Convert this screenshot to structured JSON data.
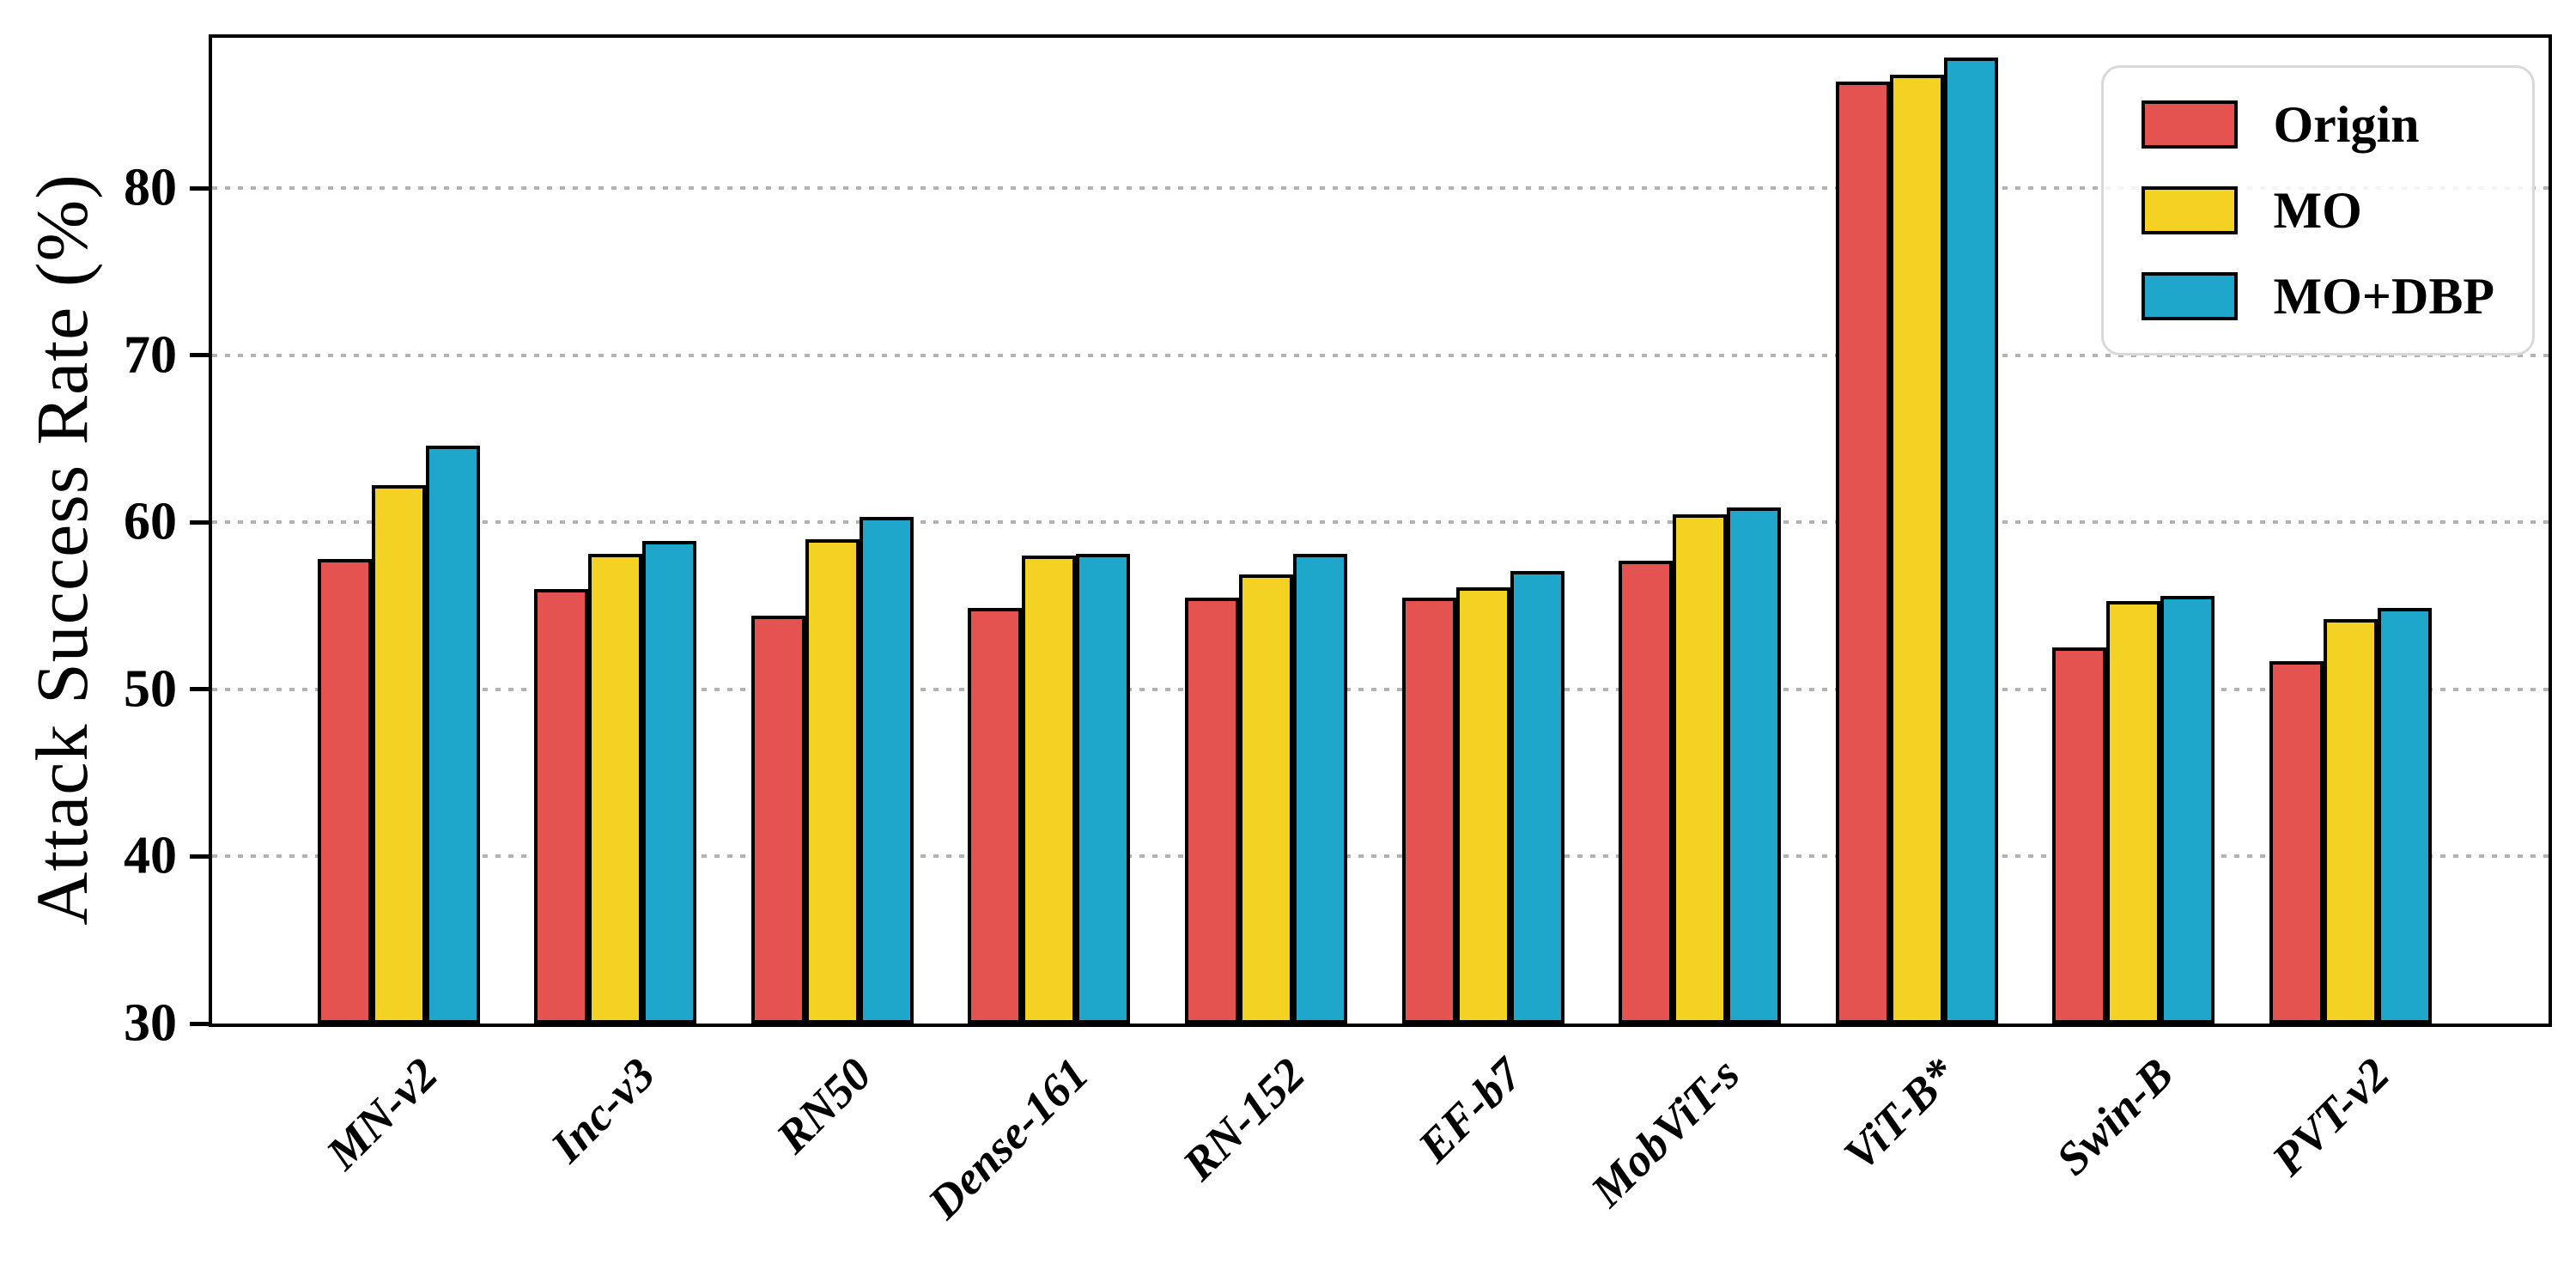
{
  "chart_data": {
    "type": "bar",
    "title": "",
    "xlabel": "",
    "ylabel": "Attack Success Rate (%)",
    "ylim": [
      30,
      89
    ],
    "yticks": [
      30,
      40,
      50,
      60,
      70,
      80
    ],
    "grid": "horizontal dotted lines at y ticks",
    "legend_position": "upper right",
    "grid_color": "#b3b3b3",
    "bar_edge_color": "#000000",
    "categories": [
      "MN-v2",
      "Inc-v3",
      "RN50",
      "Dense-161",
      "RN-152",
      "EF-b7",
      "MobViT-s",
      "ViT-B*",
      "Swin-B",
      "PVT-v2"
    ],
    "series": [
      {
        "name": "Origin",
        "color": "#E4534F",
        "values": [
          57.8,
          56.0,
          54.4,
          54.9,
          55.5,
          55.5,
          57.7,
          86.4,
          52.5,
          51.7
        ]
      },
      {
        "name": "MO",
        "color": "#F4D224",
        "values": [
          62.2,
          58.1,
          59.0,
          58.0,
          56.9,
          56.1,
          60.5,
          86.8,
          55.3,
          54.2
        ]
      },
      {
        "name": "MO+DBP",
        "color": "#1FA6CB",
        "values": [
          64.6,
          58.9,
          60.3,
          58.1,
          58.1,
          57.1,
          60.9,
          87.8,
          55.6,
          54.9
        ]
      }
    ]
  }
}
